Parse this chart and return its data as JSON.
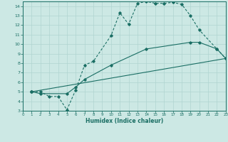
{
  "xlabel": "Humidex (Indice chaleur)",
  "xlim": [
    0,
    23
  ],
  "ylim": [
    3,
    14.5
  ],
  "xticks": [
    0,
    1,
    2,
    3,
    4,
    5,
    6,
    7,
    8,
    9,
    10,
    11,
    12,
    13,
    14,
    15,
    16,
    17,
    18,
    19,
    20,
    21,
    22,
    23
  ],
  "yticks": [
    3,
    4,
    5,
    6,
    7,
    8,
    9,
    10,
    11,
    12,
    13,
    14
  ],
  "bg_color": "#cce8e4",
  "line_color": "#1a6e64",
  "grid_color": "#b0d4d0",
  "line1_x": [
    1,
    2,
    3,
    4,
    5,
    6,
    7,
    8,
    10,
    11,
    12,
    13,
    14,
    15,
    16,
    17,
    18,
    19,
    20,
    22,
    23
  ],
  "line1_y": [
    5,
    5,
    4.5,
    4.5,
    3.1,
    5.2,
    7.8,
    8.2,
    10.9,
    13.3,
    12.1,
    14.3,
    14.5,
    14.3,
    14.3,
    14.4,
    14.2,
    13.0,
    11.5,
    9.5,
    8.5
  ],
  "line2_x": [
    1,
    2,
    5,
    6,
    7,
    10,
    14,
    19,
    20,
    22,
    23
  ],
  "line2_y": [
    5,
    4.8,
    4.8,
    5.5,
    6.3,
    7.8,
    9.5,
    10.2,
    10.2,
    9.5,
    8.5
  ],
  "line3_x": [
    1,
    23
  ],
  "line3_y": [
    5.0,
    8.5
  ]
}
